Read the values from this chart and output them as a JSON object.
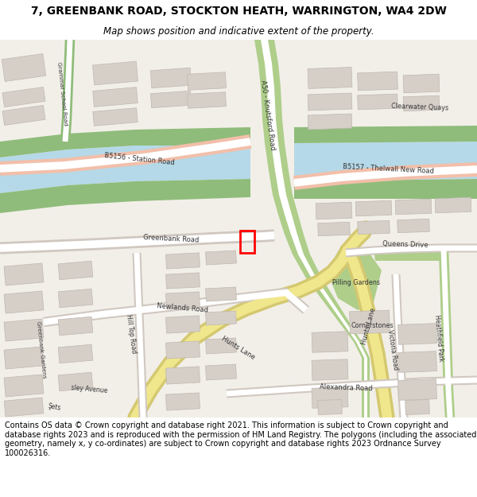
{
  "title": "7, GREENBANK ROAD, STOCKTON HEATH, WARRINGTON, WA4 2DW",
  "subtitle": "Map shows position and indicative extent of the property.",
  "footer": "Contains OS data © Crown copyright and database right 2021. This information is subject to Crown copyright and database rights 2023 and is reproduced with the permission of HM Land Registry. The polygons (including the associated geometry, namely x, y co-ordinates) are subject to Crown copyright and database rights 2023 Ordnance Survey 100026316.",
  "map_bg": "#f2efe9",
  "water_color": "#b5d9e8",
  "green_dark": "#8fbc7a",
  "green_medium": "#aece8a",
  "road_major_color": "#f2bfaa",
  "road_minor_color": "#ffffff",
  "road_yellow": "#f0e68c",
  "road_yellow_dark": "#d4c870",
  "road_green_light": "#c8dba0",
  "building_fill": "#d6cfc8",
  "building_stroke": "#bfb8b0",
  "plot_color": "#ff0000",
  "title_fontsize": 10,
  "subtitle_fontsize": 8.5,
  "footer_fontsize": 7
}
